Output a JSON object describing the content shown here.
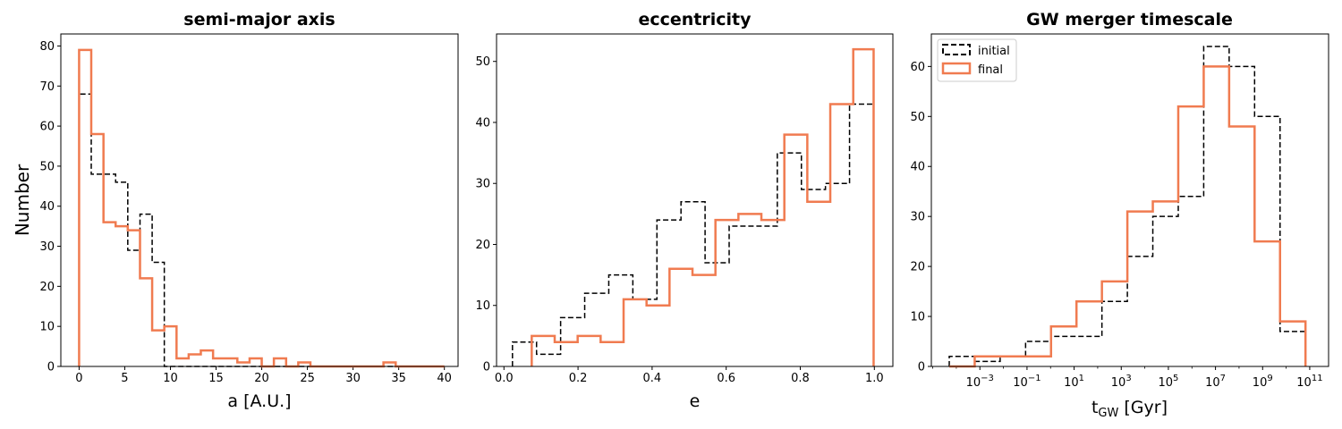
{
  "colors": {
    "initial": "#000000",
    "final": "#f07b50"
  },
  "legend": {
    "placement": "top-left",
    "panel": 2,
    "entries": [
      {
        "key": "initial",
        "label": "initial",
        "style": "dashed"
      },
      {
        "key": "final",
        "label": "final",
        "style": "solid"
      }
    ]
  },
  "chart_data": [
    {
      "type": "histogram-step",
      "title": "semi-major axis",
      "xlabel": "a [A.U.]",
      "ylabel": "Number",
      "xscale": "linear",
      "xlim": [
        -2,
        41.5
      ],
      "ylim": [
        0,
        83
      ],
      "xticks": [
        0,
        5,
        10,
        15,
        20,
        25,
        30,
        35,
        40
      ],
      "xtick_labels": [
        "0",
        "5",
        "10",
        "15",
        "20",
        "25",
        "30",
        "35",
        "40"
      ],
      "yticks": [
        0,
        10,
        20,
        30,
        40,
        50,
        60,
        70,
        80
      ],
      "series": [
        {
          "name": "initial",
          "edges": [
            0.0,
            1.33,
            2.67,
            4.0,
            5.33,
            6.67,
            8.0,
            9.33,
            10.67,
            12.0,
            13.33,
            14.67,
            16.0,
            17.33,
            18.67,
            20.0,
            21.33,
            22.67,
            24.0,
            25.33,
            26.67,
            28.0,
            29.33,
            30.67,
            32.0,
            33.33,
            34.67,
            36.0,
            37.33,
            38.67,
            40.0
          ],
          "counts": [
            68,
            48,
            48,
            46,
            29,
            38,
            26,
            0,
            0,
            0,
            0,
            0,
            0,
            0,
            0,
            0,
            0,
            0,
            0,
            0,
            0,
            0,
            0,
            0,
            0,
            0,
            0,
            0,
            0,
            0
          ]
        },
        {
          "name": "final",
          "edges": [
            0.0,
            1.33,
            2.67,
            4.0,
            5.33,
            6.67,
            8.0,
            9.33,
            10.67,
            12.0,
            13.33,
            14.67,
            16.0,
            17.33,
            18.67,
            20.0,
            21.33,
            22.67,
            24.0,
            25.33,
            26.67,
            28.0,
            29.33,
            30.67,
            32.0,
            33.33,
            34.67,
            36.0,
            37.33,
            38.67,
            40.0
          ],
          "counts": [
            79,
            58,
            36,
            35,
            34,
            22,
            9,
            10,
            2,
            3,
            4,
            2,
            2,
            1,
            2,
            0,
            2,
            0,
            1,
            0,
            0,
            0,
            0,
            0,
            0,
            1,
            0,
            0,
            0,
            0
          ]
        }
      ]
    },
    {
      "type": "histogram-step",
      "title": "eccentricity",
      "xlabel": "e",
      "ylabel": "",
      "xscale": "linear",
      "xlim": [
        -0.02,
        1.05
      ],
      "ylim": [
        0,
        54.5
      ],
      "xticks": [
        0.0,
        0.2,
        0.4,
        0.6,
        0.8,
        1.0
      ],
      "xtick_labels": [
        "0.0",
        "0.2",
        "0.4",
        "0.6",
        "0.8",
        "1.0"
      ],
      "yticks": [
        0,
        10,
        20,
        30,
        40,
        50
      ],
      "series": [
        {
          "name": "initial",
          "edges": [
            0.023,
            0.088,
            0.153,
            0.218,
            0.283,
            0.348,
            0.413,
            0.478,
            0.543,
            0.608,
            0.673,
            0.738,
            0.803,
            0.868,
            0.933,
            0.998
          ],
          "counts": [
            4,
            2,
            8,
            12,
            15,
            11,
            24,
            27,
            17,
            23,
            23,
            35,
            29,
            30,
            43
          ]
        },
        {
          "name": "final",
          "edges": [
            0.075,
            0.137,
            0.199,
            0.261,
            0.323,
            0.385,
            0.447,
            0.509,
            0.571,
            0.633,
            0.695,
            0.757,
            0.819,
            0.881,
            0.943,
            0.998
          ],
          "counts": [
            5,
            4,
            5,
            4,
            11,
            10,
            16,
            15,
            24,
            25,
            24,
            38,
            27,
            43,
            52
          ]
        }
      ]
    },
    {
      "type": "histogram-step",
      "title": "GW merger timescale",
      "xlabel": "t_GW [Gyr]",
      "ylabel": "",
      "xscale": "log10",
      "xlim": [
        -5.06,
        11.8
      ],
      "ylim": [
        0,
        66.5
      ],
      "xticks": [
        -3,
        -1,
        1,
        3,
        5,
        7,
        9,
        11
      ],
      "xtick_labels": [
        "-3",
        "-1",
        "1",
        "3",
        "5",
        "7",
        "9",
        "11"
      ],
      "yticks": [
        0,
        10,
        20,
        30,
        40,
        50,
        60
      ],
      "series": [
        {
          "name": "initial",
          "edges": [
            -4.3,
            -3.22,
            -2.14,
            -1.06,
            0.02,
            1.1,
            2.18,
            3.26,
            4.34,
            5.42,
            6.5,
            7.58,
            8.66,
            9.74,
            10.82
          ],
          "counts": [
            2,
            1,
            2,
            5,
            6,
            6,
            13,
            22,
            30,
            34,
            64,
            60,
            50,
            7
          ]
        },
        {
          "name": "final",
          "edges": [
            -4.3,
            -3.22,
            -2.14,
            -1.06,
            0.02,
            1.1,
            2.18,
            3.26,
            4.34,
            5.42,
            6.5,
            7.58,
            8.66,
            9.74,
            10.82
          ],
          "counts": [
            0,
            2,
            2,
            2,
            8,
            13,
            17,
            31,
            33,
            52,
            60,
            48,
            25,
            9
          ]
        }
      ]
    }
  ]
}
